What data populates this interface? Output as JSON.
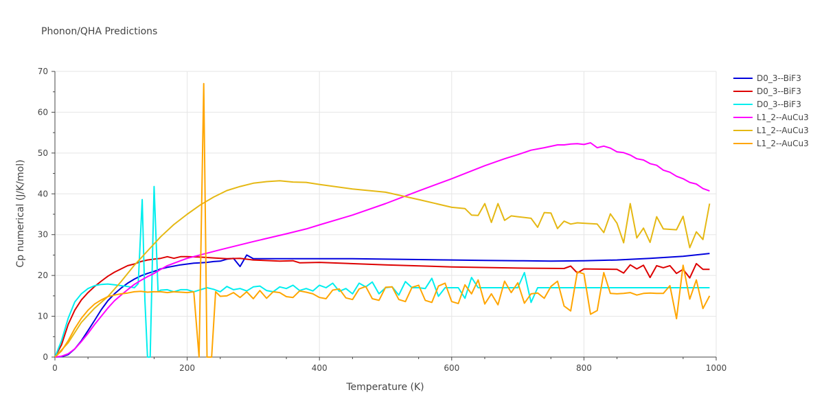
{
  "chart_data": {
    "type": "line",
    "title": "Phonon/QHA Predictions",
    "xlabel": "Temperature (K)",
    "ylabel": "Cp numerical (J/K/mol)",
    "xlim": [
      0,
      1000
    ],
    "ylim": [
      0,
      70
    ],
    "xticks": [
      0,
      200,
      400,
      600,
      800,
      1000
    ],
    "yticks": [
      0,
      10,
      20,
      30,
      40,
      50,
      60,
      70
    ],
    "legend_position": "top-right",
    "series": [
      {
        "name": "D0_3--BiF3",
        "color": "#0000dd",
        "x": [
          0,
          10,
          20,
          30,
          40,
          50,
          60,
          70,
          80,
          90,
          100,
          110,
          120,
          130,
          140,
          150,
          160,
          170,
          180,
          190,
          200,
          210,
          220,
          230,
          240,
          250,
          260,
          270,
          280,
          290,
          300,
          350,
          400,
          450,
          500,
          550,
          600,
          650,
          700,
          750,
          800,
          850,
          900,
          950,
          990
        ],
        "y": [
          0,
          0.1,
          0.6,
          2,
          4,
          6.5,
          9,
          11.6,
          13.8,
          15.5,
          16.9,
          18.1,
          19.1,
          19.9,
          20.5,
          21,
          21.6,
          22,
          22.3,
          22.6,
          22.8,
          23,
          23.1,
          23.2,
          23.4,
          23.5,
          24,
          24.2,
          22.2,
          25,
          24.1,
          24.1,
          24.1,
          24.1,
          24,
          23.9,
          23.8,
          23.7,
          23.6,
          23.5,
          23.6,
          23.8,
          24.2,
          24.7,
          25.4
        ]
      },
      {
        "name": "D0_3--BiF3",
        "color": "#dd0000",
        "x": [
          0,
          10,
          20,
          30,
          40,
          50,
          60,
          70,
          80,
          90,
          100,
          110,
          120,
          130,
          140,
          150,
          160,
          170,
          180,
          190,
          200,
          220,
          240,
          260,
          280,
          300,
          340,
          360,
          370,
          400,
          500,
          600,
          700,
          770,
          780,
          790,
          800,
          850,
          860,
          870,
          880,
          890,
          900,
          910,
          920,
          930,
          940,
          950,
          960,
          970,
          980,
          990
        ],
        "y": [
          0,
          3,
          8,
          11.5,
          14,
          15.8,
          17.3,
          18.6,
          19.8,
          20.8,
          21.6,
          22.4,
          22.8,
          23.4,
          23.8,
          24,
          24.2,
          24.6,
          24.2,
          24.6,
          24.6,
          24.5,
          24.3,
          24.1,
          24.2,
          23.8,
          23.5,
          23.6,
          23.1,
          23.2,
          22.6,
          22.1,
          21.8,
          21.7,
          22.3,
          20.6,
          21.6,
          21.5,
          20.6,
          22.6,
          21.6,
          22.5,
          19.5,
          22.4,
          21.9,
          22.4,
          20.5,
          21.5,
          19.4,
          22.9,
          21.5,
          21.5
        ]
      },
      {
        "name": "D0_3--BiF3",
        "color": "#00eeee",
        "x": [
          0,
          10,
          20,
          30,
          40,
          50,
          60,
          70,
          80,
          90,
          100,
          110,
          120,
          126,
          132,
          136,
          140,
          144,
          150,
          156,
          160,
          170,
          180,
          190,
          200,
          210,
          220,
          230,
          240,
          250,
          260,
          270,
          280,
          290,
          300,
          310,
          320,
          330,
          340,
          350,
          360,
          370,
          380,
          390,
          400,
          410,
          420,
          430,
          440,
          450,
          460,
          470,
          480,
          490,
          500,
          510,
          520,
          530,
          540,
          550,
          560,
          570,
          580,
          590,
          600,
          610,
          620,
          630,
          640,
          650,
          700,
          710,
          720,
          730,
          740,
          800,
          900,
          990
        ],
        "y": [
          0,
          4,
          9.5,
          13.5,
          15.5,
          16.8,
          17.5,
          17.8,
          17.9,
          17.7,
          17.5,
          17.3,
          17,
          18,
          38.6,
          14,
          0,
          0,
          41.8,
          16,
          16.4,
          16.5,
          16,
          16.5,
          16.5,
          16,
          16.5,
          17,
          16.6,
          16,
          17.3,
          16.5,
          16.8,
          16.2,
          17.2,
          17.4,
          16.3,
          16,
          17.2,
          16.8,
          17.6,
          16.3,
          16.8,
          16.2,
          17.6,
          17,
          18.1,
          16.1,
          16.8,
          15.5,
          18.1,
          17.2,
          18.4,
          15.5,
          17,
          17.2,
          15.2,
          18.5,
          17,
          17,
          16.8,
          19.3,
          14.9,
          17,
          17,
          17,
          14.4,
          19.5,
          17,
          17,
          17,
          20.7,
          13.4,
          17,
          17,
          17,
          17,
          17
        ]
      },
      {
        "name": "L1_2--AuCu3",
        "color": "#ff00ff",
        "x": [
          0,
          10,
          20,
          30,
          40,
          50,
          60,
          70,
          80,
          90,
          100,
          110,
          120,
          130,
          140,
          150,
          160,
          170,
          180,
          190,
          200,
          250,
          300,
          350,
          380,
          400,
          450,
          500,
          550,
          600,
          650,
          680,
          700,
          720,
          740,
          760,
          770,
          780,
          790,
          800,
          810,
          820,
          830,
          840,
          850,
          860,
          870,
          880,
          890,
          900,
          910,
          920,
          930,
          940,
          950,
          960,
          970,
          980,
          990
        ],
        "y": [
          0,
          0.2,
          0.8,
          2,
          3.8,
          5.8,
          8,
          10,
          12,
          13.8,
          15.2,
          16.5,
          17.8,
          18.8,
          19.7,
          20.5,
          21.5,
          22.4,
          23,
          23.6,
          24.2,
          26.3,
          28.3,
          30.2,
          31.4,
          32.4,
          34.8,
          37.6,
          40.7,
          43.7,
          46.9,
          48.6,
          49.6,
          50.7,
          51.3,
          52,
          52,
          52.2,
          52.3,
          52.1,
          52.5,
          51.3,
          51.7,
          51.2,
          50.3,
          50.1,
          49.5,
          48.6,
          48.3,
          47.4,
          47,
          45.8,
          45.3,
          44.3,
          43.7,
          42.8,
          42.4,
          41.3,
          40.7
        ]
      },
      {
        "name": "L1_2--AuCu3",
        "color": "#e5b813",
        "x": [
          0,
          20,
          40,
          60,
          80,
          100,
          120,
          140,
          160,
          180,
          200,
          220,
          240,
          260,
          280,
          300,
          320,
          340,
          360,
          380,
          400,
          450,
          500,
          550,
          600,
          620,
          630,
          640,
          650,
          660,
          670,
          680,
          690,
          700,
          720,
          730,
          740,
          750,
          760,
          770,
          780,
          790,
          800,
          820,
          830,
          840,
          850,
          860,
          870,
          880,
          890,
          900,
          910,
          920,
          930,
          940,
          950,
          960,
          970,
          980,
          990
        ],
        "y": [
          0,
          3.5,
          8.5,
          12,
          14.8,
          18.5,
          22.5,
          26,
          29.5,
          32.5,
          35,
          37.3,
          39.2,
          40.8,
          41.8,
          42.6,
          43,
          43.2,
          42.9,
          42.8,
          42.3,
          41.2,
          40.4,
          38.6,
          36.7,
          36.4,
          34.8,
          34.7,
          37.6,
          33,
          37.6,
          33.5,
          34.6,
          34.4,
          34,
          31.8,
          35.4,
          35.3,
          31.5,
          33.3,
          32.6,
          32.9,
          32.8,
          32.6,
          30.5,
          35.1,
          32.8,
          28,
          37.6,
          29.2,
          31.6,
          28.1,
          34.4,
          31.4,
          31.3,
          31.2,
          34.5,
          26.8,
          30.7,
          28.8,
          37.6
        ]
      },
      {
        "name": "L1_2--AuCu3",
        "color": "#ffa500",
        "x": [
          0,
          10,
          20,
          30,
          40,
          50,
          60,
          70,
          80,
          90,
          100,
          110,
          120,
          130,
          140,
          150,
          160,
          170,
          180,
          190,
          200,
          210,
          218,
          225,
          230,
          237,
          243,
          250,
          260,
          270,
          280,
          290,
          300,
          310,
          320,
          330,
          340,
          350,
          360,
          370,
          380,
          390,
          400,
          410,
          420,
          430,
          440,
          450,
          460,
          470,
          480,
          490,
          500,
          510,
          520,
          530,
          540,
          550,
          560,
          570,
          580,
          590,
          600,
          610,
          620,
          630,
          640,
          650,
          660,
          670,
          680,
          690,
          700,
          710,
          720,
          730,
          740,
          750,
          760,
          770,
          780,
          790,
          800,
          810,
          820,
          830,
          840,
          850,
          860,
          870,
          880,
          890,
          900,
          910,
          920,
          930,
          940,
          950,
          960,
          970,
          980,
          990
        ],
        "y": [
          0,
          1.5,
          4,
          7,
          9.5,
          11.5,
          13,
          14,
          14.8,
          15.2,
          15.5,
          15.7,
          16,
          16.1,
          15.9,
          16,
          16,
          15.8,
          16,
          15.9,
          15.8,
          16,
          0,
          67,
          0,
          0,
          16,
          14.9,
          15,
          15.8,
          14.6,
          16,
          14.3,
          16.3,
          14.4,
          16,
          15.8,
          14.8,
          14.6,
          16.2,
          15.9,
          15.5,
          14.6,
          14.3,
          16.4,
          16.7,
          14.5,
          14.1,
          16.7,
          17.3,
          14.3,
          13.9,
          17.1,
          17.2,
          14.1,
          13.6,
          17.1,
          17.6,
          13.9,
          13.4,
          17.4,
          18.1,
          13.6,
          13.1,
          17.7,
          15.5,
          18.9,
          13,
          15.5,
          12.8,
          18.6,
          15.8,
          18.2,
          13.2,
          15.5,
          15.7,
          14.4,
          17.3,
          18.6,
          12.5,
          11.3,
          20.9,
          20.4,
          10.5,
          11.4,
          20.7,
          15.6,
          15.5,
          15.6,
          15.8,
          15.2,
          15.6,
          15.7,
          15.6,
          15.6,
          17.5,
          9.4,
          22.5,
          14.2,
          18.9,
          11.9,
          15
        ]
      }
    ]
  }
}
